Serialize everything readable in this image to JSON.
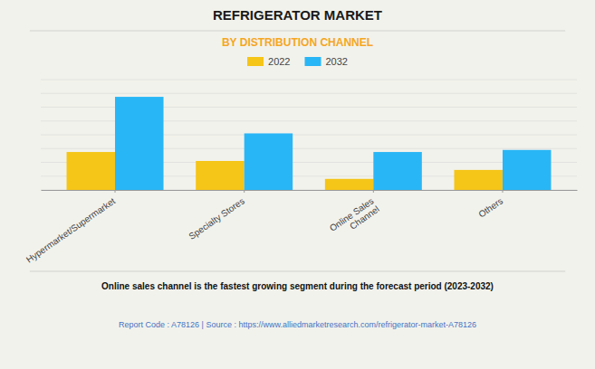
{
  "chart_data": {
    "type": "bar",
    "title": "REFRIGERATOR MARKET",
    "subtitle": "BY DISTRIBUTION CHANNEL",
    "categories": [
      "Hypermarket/Supermarket",
      "Specialty Stores",
      "Online Sales\nChannel",
      "Others"
    ],
    "series": [
      {
        "name": "2022",
        "color": "#F5C518",
        "values": [
          5.5,
          4.2,
          1.6,
          2.9
        ]
      },
      {
        "name": "2032",
        "color": "#29B6F6",
        "values": [
          13.5,
          8.2,
          5.5,
          5.8
        ]
      }
    ],
    "ylim": [
      0,
      16
    ],
    "yticks": [
      0,
      2,
      4,
      6,
      8,
      10,
      12,
      14,
      16
    ],
    "grid": true,
    "legend": "top",
    "tick_labels": "x",
    "annotations": [
      "Online sales channel is the fastest growing segment during the forecast period (2023-2032)",
      "Report Code : A78126  |  Source : https://www.alliedmarketresearch.com/refrigerator-market-A78126"
    ]
  }
}
